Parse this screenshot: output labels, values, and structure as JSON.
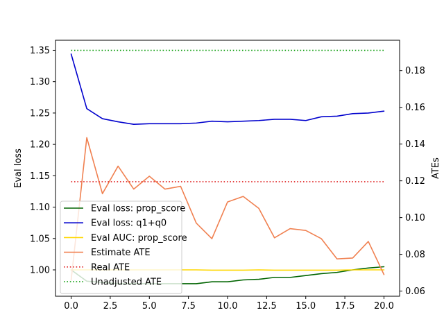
{
  "chart_data": {
    "type": "line",
    "title": "",
    "xlabel": "",
    "ylabel_left": "Eval loss",
    "ylabel_right": "ATEs",
    "xlim": [
      -1,
      21
    ],
    "ylim_left": [
      0.958,
      1.366
    ],
    "ylim_right": [
      0.0572,
      0.1965
    ],
    "x_ticks": [
      "0.0",
      "2.5",
      "5.0",
      "7.5",
      "10.0",
      "12.5",
      "15.0",
      "17.5",
      "20.0"
    ],
    "x_tick_values": [
      0,
      2.5,
      5,
      7.5,
      10,
      12.5,
      15,
      17.5,
      20
    ],
    "y_left_ticks": [
      "1.00",
      "1.05",
      "1.10",
      "1.15",
      "1.20",
      "1.25",
      "1.30",
      "1.35"
    ],
    "y_left_tick_values": [
      1.0,
      1.05,
      1.1,
      1.15,
      1.2,
      1.25,
      1.3,
      1.35
    ],
    "y_right_ticks": [
      "0.06",
      "0.08",
      "0.10",
      "0.12",
      "0.14",
      "0.16",
      "0.18"
    ],
    "y_right_tick_values": [
      0.06,
      0.08,
      0.1,
      0.12,
      0.14,
      0.16,
      0.18
    ],
    "legend_placement": "lower-left",
    "x": [
      0,
      1,
      2,
      3,
      4,
      5,
      6,
      7,
      8,
      9,
      10,
      11,
      12,
      13,
      14,
      15,
      16,
      17,
      18,
      19,
      20
    ],
    "series": [
      {
        "name": "Eval loss: prop_score",
        "axis": "left",
        "style": "solid",
        "color": "#006400",
        "values": [
          1.0,
          0.982,
          0.98,
          0.978,
          0.978,
          0.978,
          0.978,
          0.978,
          0.978,
          0.981,
          0.981,
          0.984,
          0.985,
          0.988,
          0.988,
          0.991,
          0.994,
          0.996,
          1.0,
          1.003,
          1.005
        ]
      },
      {
        "name": "Eval loss: q1+q0",
        "axis": "left",
        "style": "solid",
        "color": "#0000cd",
        "values": [
          1.344,
          1.257,
          1.241,
          1.236,
          1.232,
          1.233,
          1.233,
          1.233,
          1.234,
          1.237,
          1.236,
          1.237,
          1.238,
          1.24,
          1.24,
          1.238,
          1.244,
          1.245,
          1.249,
          1.25,
          1.253
        ]
      },
      {
        "name": "Eval AUC: prop_score",
        "axis": "left",
        "style": "solid",
        "color": "#ffd700",
        "values": [
          1.0,
          1.0,
          1.0,
          1.0,
          1.0,
          1.0,
          1.0,
          1.0,
          1.0,
          0.9995,
          0.9995,
          0.9995,
          1.0,
          0.9995,
          0.9995,
          0.9995,
          0.9995,
          0.9995,
          1.0,
          1.0,
          1.0
        ]
      },
      {
        "name": "Estimate ATE",
        "axis": "right",
        "style": "solid",
        "color": "#f08050",
        "values": [
          0.066,
          0.1435,
          0.113,
          0.128,
          0.1155,
          0.1225,
          0.1155,
          0.117,
          0.097,
          0.0885,
          0.1085,
          0.1115,
          0.105,
          0.089,
          0.094,
          0.093,
          0.0885,
          0.0775,
          0.078,
          0.087,
          0.069
        ]
      },
      {
        "name": "Real ATE",
        "axis": "right",
        "style": "dotted",
        "color": "#e02020",
        "values": [
          0.1195,
          0.1195,
          0.1195,
          0.1195,
          0.1195,
          0.1195,
          0.1195,
          0.1195,
          0.1195,
          0.1195,
          0.1195,
          0.1195,
          0.1195,
          0.1195,
          0.1195,
          0.1195,
          0.1195,
          0.1195,
          0.1195,
          0.1195,
          0.1195
        ]
      },
      {
        "name": "Unadjusted ATE",
        "axis": "right",
        "style": "dotted",
        "color": "#009900",
        "values": [
          0.191,
          0.191,
          0.191,
          0.191,
          0.191,
          0.191,
          0.191,
          0.191,
          0.191,
          0.191,
          0.191,
          0.191,
          0.191,
          0.191,
          0.191,
          0.191,
          0.191,
          0.191,
          0.191,
          0.191,
          0.191
        ]
      }
    ]
  }
}
